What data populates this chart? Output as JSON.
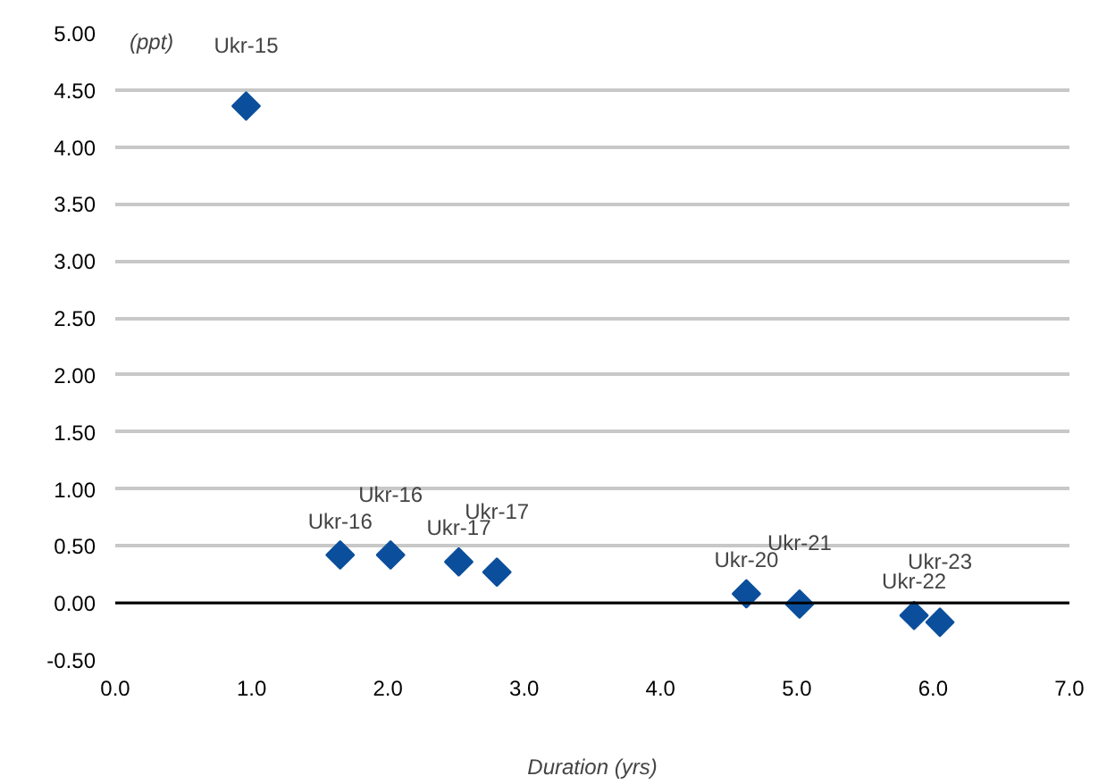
{
  "chart_data": {
    "type": "scatter",
    "ylabel": "(ppt)",
    "xlabel": "Duration (yrs)",
    "x": [
      0.96,
      1.65,
      2.02,
      2.52,
      2.8,
      4.63,
      5.02,
      5.86,
      6.05
    ],
    "series": [
      {
        "color": "#0b4f9c",
        "values": [
          4.36,
          0.42,
          0.42,
          0.36,
          0.27,
          0.08,
          -0.01,
          -0.11,
          -0.17
        ]
      }
    ],
    "annotations": [
      {
        "text": "Ukr-15",
        "x": 0.96,
        "y": 4.36
      },
      {
        "text": "Ukr-16",
        "x": 1.65,
        "y": 0.42
      },
      {
        "text": "Ukr-16",
        "x": 2.02,
        "y": 0.42
      },
      {
        "text": "Ukr-17",
        "x": 2.52,
        "y": 0.36
      },
      {
        "text": "Ukr-17",
        "x": 2.8,
        "y": 0.27
      },
      {
        "text": "Ukr-20",
        "x": 4.63,
        "y": 0.08
      },
      {
        "text": "Ukr-21",
        "x": 5.02,
        "y": -0.01
      },
      {
        "text": "Ukr-22",
        "x": 5.86,
        "y": -0.11
      },
      {
        "text": "Ukr-23",
        "x": 6.05,
        "y": -0.17
      }
    ],
    "xlim": [
      0,
      7
    ],
    "xticks": [
      {
        "value": 0,
        "label": "0.0"
      },
      {
        "value": 1,
        "label": "1.0"
      },
      {
        "value": 2,
        "label": "2.0"
      },
      {
        "value": 3,
        "label": "3.0"
      },
      {
        "value": 4,
        "label": "4.0"
      },
      {
        "value": 5,
        "label": "5.0"
      },
      {
        "value": 6,
        "label": "6.0"
      },
      {
        "value": 7,
        "label": "7.0"
      }
    ],
    "ylim": [
      -0.5,
      5
    ],
    "yticks": [
      {
        "value": -0.5,
        "label": "-0.50"
      },
      {
        "value": 0,
        "label": "0.00"
      },
      {
        "value": 0.5,
        "label": "0.50"
      },
      {
        "value": 1,
        "label": "1.00"
      },
      {
        "value": 1.5,
        "label": "1.50"
      },
      {
        "value": 2,
        "label": "2.00"
      },
      {
        "value": 2.5,
        "label": "2.50"
      },
      {
        "value": 3,
        "label": "3.00"
      },
      {
        "value": 3.5,
        "label": "3.50"
      },
      {
        "value": 4,
        "label": "4.00"
      },
      {
        "value": 4.5,
        "label": "4.50"
      },
      {
        "value": 5,
        "label": "5.00"
      }
    ],
    "ref_lines": [
      {
        "axis": "y",
        "value": 0,
        "color": "#000000"
      }
    ],
    "grid": "y",
    "marker": "diamond"
  }
}
